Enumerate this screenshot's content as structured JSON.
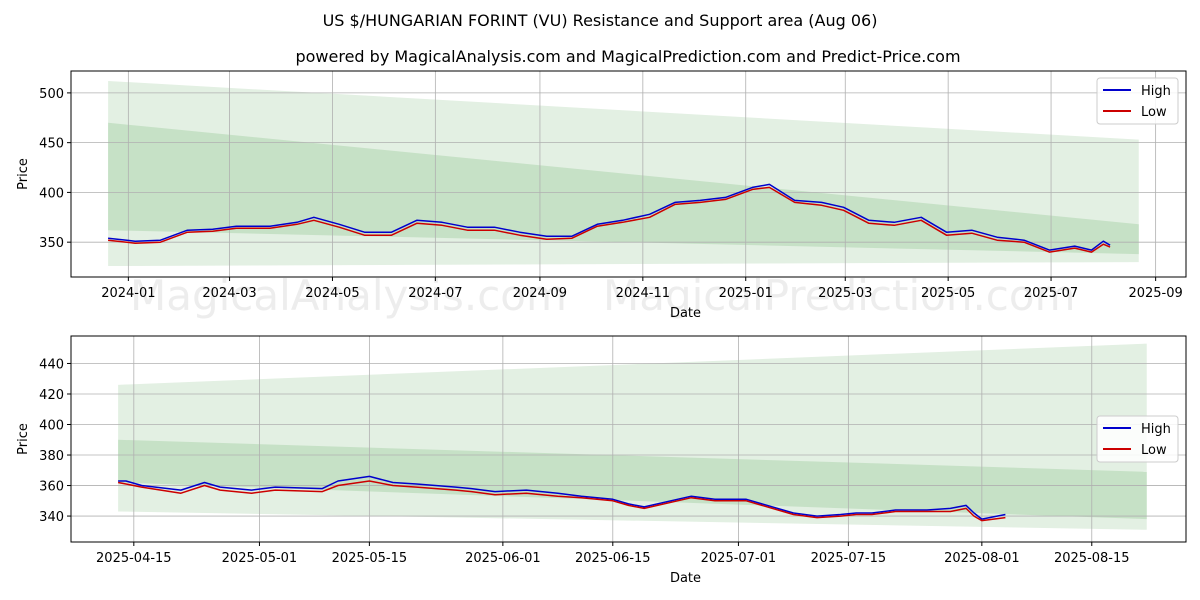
{
  "title": "US $/HUNGARIAN FORINT (VU) Resistance and Support area (Aug 06)",
  "subtitle": "powered by MagicalAnalysis.com and MagicalPrediction.com and Predict-Price.com",
  "watermarks": [
    "MagicalAnalysis.com",
    "MagicalPrediction.com"
  ],
  "colors": {
    "high": "#0000cc",
    "low": "#cc0000",
    "band_outer": "#e3f0e3",
    "band_inner": "#bcdcbc",
    "grid": "#b0b0b0"
  },
  "chart_data": [
    {
      "type": "line",
      "xlabel": "Date",
      "ylabel": "Price",
      "x_ticks": [
        "2024-01",
        "2024-03",
        "2024-05",
        "2024-07",
        "2024-09",
        "2024-11",
        "2025-01",
        "2025-03",
        "2025-05",
        "2025-07",
        "2025-09"
      ],
      "y_ticks": [
        350,
        400,
        450,
        500
      ],
      "ylim": [
        315,
        522
      ],
      "xlim": [
        "2023-11-28",
        "2025-09-19"
      ],
      "grid": true,
      "legend": "top-right",
      "bands": [
        {
          "x": [
            "2023-12-20",
            "2025-08-22"
          ],
          "upper": [
            512,
            453
          ],
          "lower": [
            326,
            330
          ]
        },
        {
          "x": [
            "2023-12-20",
            "2025-08-22"
          ],
          "upper": [
            470,
            368
          ],
          "lower": [
            362,
            338
          ]
        }
      ],
      "series": [
        {
          "name": "High",
          "x": [
            "2023-12-20",
            "2024-01-05",
            "2024-01-20",
            "2024-02-05",
            "2024-02-20",
            "2024-03-05",
            "2024-03-25",
            "2024-04-10",
            "2024-04-20",
            "2024-05-05",
            "2024-05-20",
            "2024-06-05",
            "2024-06-20",
            "2024-07-05",
            "2024-07-20",
            "2024-08-05",
            "2024-08-20",
            "2024-09-05",
            "2024-09-20",
            "2024-10-05",
            "2024-10-20",
            "2024-11-05",
            "2024-11-20",
            "2024-12-05",
            "2024-12-20",
            "2025-01-05",
            "2025-01-15",
            "2025-01-30",
            "2025-02-15",
            "2025-02-28",
            "2025-03-15",
            "2025-03-30",
            "2025-04-15",
            "2025-04-30",
            "2025-05-15",
            "2025-05-30",
            "2025-06-15",
            "2025-06-30",
            "2025-07-15",
            "2025-07-25",
            "2025-08-01",
            "2025-08-05"
          ],
          "y": [
            354,
            351,
            352,
            362,
            363,
            366,
            366,
            370,
            375,
            368,
            360,
            360,
            372,
            370,
            365,
            365,
            360,
            356,
            356,
            368,
            372,
            378,
            390,
            392,
            395,
            405,
            408,
            392,
            390,
            385,
            372,
            370,
            375,
            360,
            362,
            355,
            352,
            342,
            346,
            342,
            351,
            347
          ]
        },
        {
          "name": "Low",
          "x": [
            "2023-12-20",
            "2024-01-05",
            "2024-01-20",
            "2024-02-05",
            "2024-02-20",
            "2024-03-05",
            "2024-03-25",
            "2024-04-10",
            "2024-04-20",
            "2024-05-05",
            "2024-05-20",
            "2024-06-05",
            "2024-06-20",
            "2024-07-05",
            "2024-07-20",
            "2024-08-05",
            "2024-08-20",
            "2024-09-05",
            "2024-09-20",
            "2024-10-05",
            "2024-10-20",
            "2024-11-05",
            "2024-11-20",
            "2024-12-05",
            "2024-12-20",
            "2025-01-05",
            "2025-01-15",
            "2025-01-30",
            "2025-02-15",
            "2025-02-28",
            "2025-03-15",
            "2025-03-30",
            "2025-04-15",
            "2025-04-30",
            "2025-05-15",
            "2025-05-30",
            "2025-06-15",
            "2025-06-30",
            "2025-07-15",
            "2025-07-25",
            "2025-08-01",
            "2025-08-05"
          ],
          "y": [
            352,
            349,
            350,
            360,
            361,
            364,
            364,
            368,
            372,
            365,
            357,
            357,
            369,
            367,
            362,
            362,
            357,
            353,
            354,
            366,
            370,
            375,
            388,
            390,
            393,
            403,
            405,
            390,
            387,
            382,
            369,
            367,
            372,
            357,
            359,
            352,
            350,
            340,
            344,
            340,
            348,
            345
          ]
        }
      ]
    },
    {
      "type": "line",
      "xlabel": "Date",
      "ylabel": "Price",
      "x_ticks": [
        "2025-04-15",
        "2025-05-01",
        "2025-05-15",
        "2025-06-01",
        "2025-06-15",
        "2025-07-01",
        "2025-07-15",
        "2025-08-01",
        "2025-08-15"
      ],
      "y_ticks": [
        340,
        360,
        380,
        400,
        420,
        440
      ],
      "ylim": [
        323,
        458
      ],
      "xlim": [
        "2025-04-07",
        "2025-08-27"
      ],
      "grid": true,
      "legend": "right",
      "bands": [
        {
          "x": [
            "2025-04-13",
            "2025-08-22"
          ],
          "upper": [
            426,
            453
          ],
          "lower": [
            343,
            331
          ]
        },
        {
          "x": [
            "2025-04-13",
            "2025-08-22"
          ],
          "upper": [
            390,
            369
          ],
          "lower": [
            362,
            338
          ]
        }
      ],
      "series": [
        {
          "name": "High",
          "x": [
            "2025-04-13",
            "2025-04-14",
            "2025-04-16",
            "2025-04-21",
            "2025-04-24",
            "2025-04-26",
            "2025-04-30",
            "2025-05-03",
            "2025-05-09",
            "2025-05-11",
            "2025-05-15",
            "2025-05-18",
            "2025-05-21",
            "2025-05-26",
            "2025-05-28",
            "2025-05-31",
            "2025-06-04",
            "2025-06-08",
            "2025-06-11",
            "2025-06-15",
            "2025-06-17",
            "2025-06-19",
            "2025-06-25",
            "2025-06-28",
            "2025-07-02",
            "2025-07-08",
            "2025-07-11",
            "2025-07-14",
            "2025-07-16",
            "2025-07-18",
            "2025-07-21",
            "2025-07-25",
            "2025-07-28",
            "2025-07-30",
            "2025-07-31",
            "2025-08-01",
            "2025-08-04"
          ],
          "y": [
            363,
            363,
            360,
            357,
            362,
            359,
            357,
            359,
            358,
            363,
            366,
            362,
            361,
            359,
            358,
            356,
            357,
            355,
            353,
            351,
            348,
            346,
            353,
            351,
            351,
            342,
            340,
            341,
            342,
            342,
            344,
            344,
            345,
            347,
            342,
            338,
            341
          ]
        },
        {
          "name": "Low",
          "x": [
            "2025-04-13",
            "2025-04-14",
            "2025-04-16",
            "2025-04-21",
            "2025-04-24",
            "2025-04-26",
            "2025-04-30",
            "2025-05-03",
            "2025-05-09",
            "2025-05-11",
            "2025-05-15",
            "2025-05-18",
            "2025-05-21",
            "2025-05-26",
            "2025-05-28",
            "2025-05-31",
            "2025-06-04",
            "2025-06-08",
            "2025-06-11",
            "2025-06-15",
            "2025-06-17",
            "2025-06-19",
            "2025-06-25",
            "2025-06-28",
            "2025-07-02",
            "2025-07-08",
            "2025-07-11",
            "2025-07-14",
            "2025-07-16",
            "2025-07-18",
            "2025-07-21",
            "2025-07-25",
            "2025-07-28",
            "2025-07-30",
            "2025-07-31",
            "2025-08-01",
            "2025-08-04"
          ],
          "y": [
            362,
            361,
            359,
            355,
            360,
            357,
            355,
            357,
            356,
            360,
            363,
            360,
            359,
            357,
            356,
            354,
            355,
            353,
            352,
            350,
            347,
            345,
            352,
            350,
            350,
            341,
            339,
            340,
            341,
            341,
            343,
            343,
            343,
            345,
            340,
            337,
            339
          ]
        }
      ]
    }
  ]
}
